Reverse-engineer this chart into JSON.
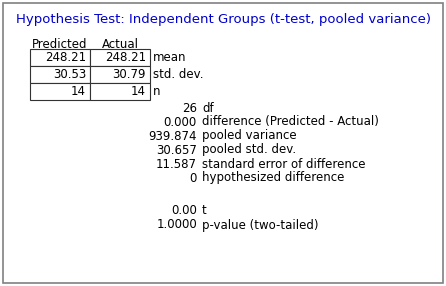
{
  "title": "Hypothesis Test: Independent Groups (t-test, pooled variance)",
  "title_fontsize": 9.5,
  "title_color": "#0000CC",
  "bg_color": "#FFFFFF",
  "border_color": "#808080",
  "col_headers": [
    "Predicted",
    "Actual"
  ],
  "row_labels": [
    "mean",
    "std. dev.",
    "n"
  ],
  "table_data": [
    [
      "248.21",
      "248.21"
    ],
    [
      "30.53",
      "30.79"
    ],
    [
      "14",
      "14"
    ]
  ],
  "stats": [
    [
      "26",
      "df"
    ],
    [
      "0.000",
      "difference (Predicted - Actual)"
    ],
    [
      "939.874",
      "pooled variance"
    ],
    [
      "30.657",
      "pooled std. dev."
    ],
    [
      "11.587",
      "standard error of difference"
    ],
    [
      "0",
      "hypothesized difference"
    ]
  ],
  "results": [
    [
      "0.00",
      "t"
    ],
    [
      "1.0000",
      "p-value (two-tailed)"
    ]
  ],
  "font_size": 8.5,
  "text_color": "#000000"
}
